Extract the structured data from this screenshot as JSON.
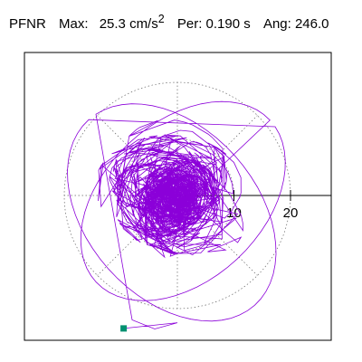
{
  "header": {
    "station": "PFNR",
    "max_label": "Max:",
    "max_value": "25.3 cm/s",
    "max_exp": "2",
    "per_label": "Per:",
    "per_value": "0.190 s",
    "ang_label": "Ang:",
    "ang_value": "246.0"
  },
  "colors": {
    "trace": "#8b00d9",
    "marker": "#009070",
    "grid": "#666666",
    "axis": "#000000"
  },
  "chart_data": {
    "type": "particle-motion",
    "rings": [
      10,
      20
    ],
    "ring_labels": [
      "10",
      "20"
    ],
    "max_amplitude": 25.3,
    "angle_deg": 246.0,
    "end_point": [
      -9.5,
      -23.5
    ]
  }
}
